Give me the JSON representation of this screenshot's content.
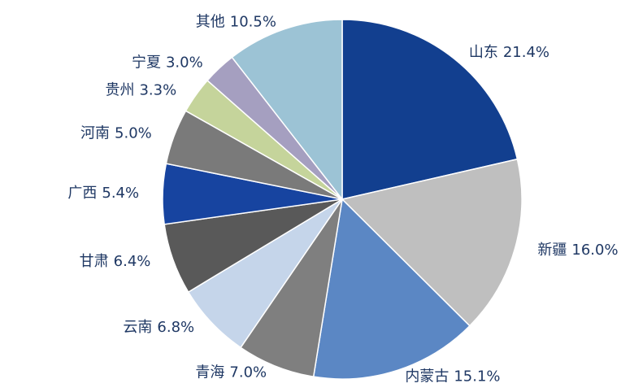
{
  "chart_data": {
    "type": "pie",
    "categories": [
      "山东",
      "新疆",
      "内蒙古",
      "青海",
      "云南",
      "甘肃",
      "广西",
      "河南",
      "贵州",
      "宁夏",
      "其他"
    ],
    "values": [
      21.4,
      16.0,
      15.1,
      7.0,
      6.8,
      6.4,
      5.4,
      5.0,
      3.3,
      3.0,
      10.5
    ],
    "value_labels": [
      "21.4%",
      "16.0%",
      "15.1%",
      "7.0%",
      "6.8%",
      "6.4%",
      "5.4%",
      "5.0%",
      "3.3%",
      "3.0%",
      "10.5%"
    ],
    "colors": [
      "#123f8f",
      "#bfbfbf",
      "#5b87c4",
      "#7f7f7f",
      "#c5d5ea",
      "#595959",
      "#1744a0",
      "#7a7a7a",
      "#c5d49b",
      "#a59fc0",
      "#9cc3d5"
    ]
  }
}
